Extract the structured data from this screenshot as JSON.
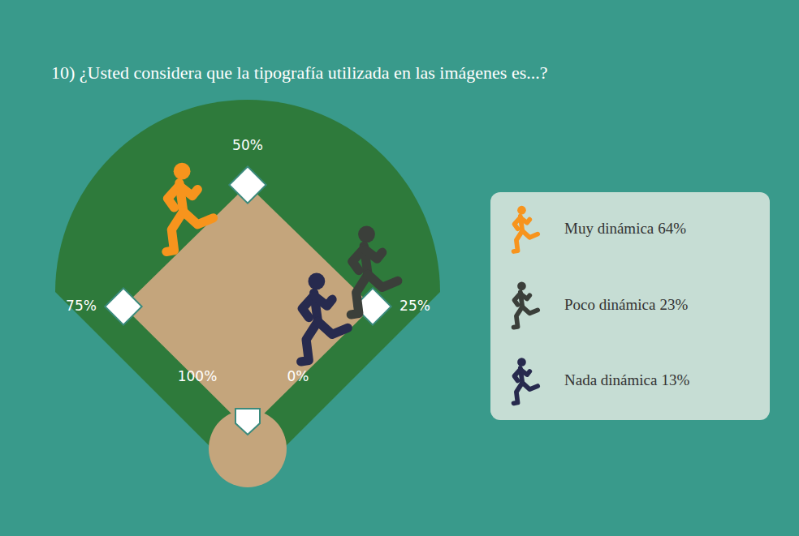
{
  "chart_data": {
    "type": "diamond",
    "title": "10) ¿Usted considera que la tipografía utilizada en las imágenes es...?",
    "categories": [
      "Muy dinámica",
      "Poco dinámica",
      "Nada dinámica"
    ],
    "values": [
      64,
      23,
      13
    ],
    "value_labels": [
      "64%",
      "23%",
      "13%"
    ],
    "colors": [
      "#f7941d",
      "#3b3f3a",
      "#272a4e"
    ],
    "xlim": [
      0,
      100
    ],
    "xticks": [
      {
        "value": 0,
        "label": "0%"
      },
      {
        "value": 25,
        "label": "25%"
      },
      {
        "value": 50,
        "label": "50%"
      },
      {
        "value": 75,
        "label": "75%"
      },
      {
        "value": 100,
        "label": "100%"
      }
    ],
    "legend": "right"
  }
}
